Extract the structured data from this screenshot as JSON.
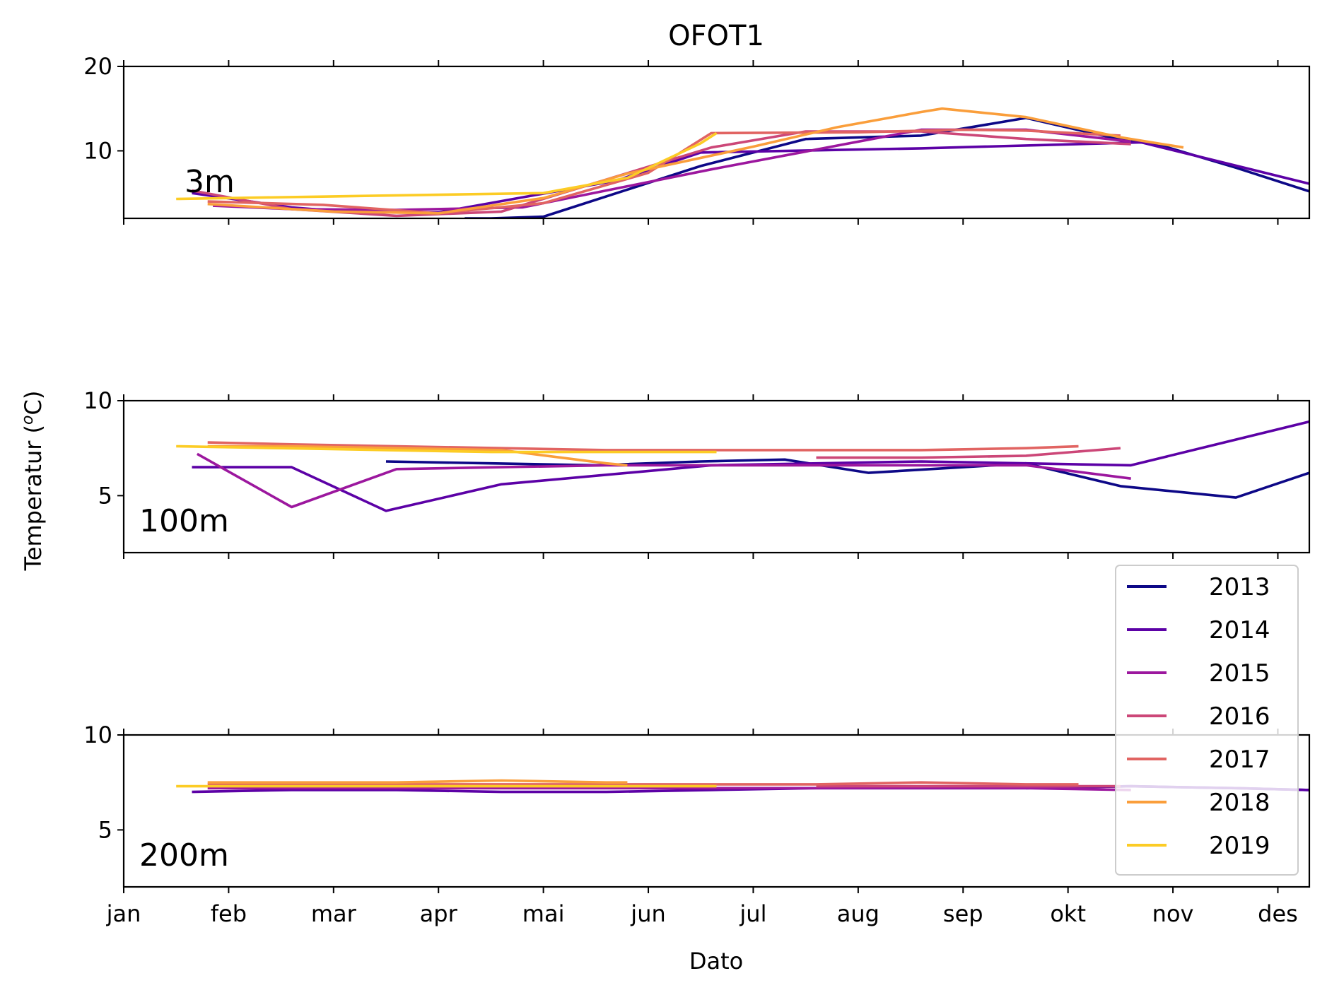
{
  "chart_data": {
    "type": "line",
    "title": "OFOT1",
    "xlabel": "Dato",
    "ylabel": "Temperatur (oC)",
    "ylabel_parts": {
      "before": "Temperatur (",
      "sup": "o",
      "after": "C)"
    },
    "x_tick_labels": [
      "jan",
      "feb",
      "mar",
      "apr",
      "mai",
      "jun",
      "jul",
      "aug",
      "sep",
      "okt",
      "nov",
      "des"
    ],
    "x_unit": "month (jan = 0)",
    "xlim": [
      0,
      11.3
    ],
    "legend": {
      "placement": "right, overlapping bottom panels"
    },
    "colors": {
      "2013": "#0d0887",
      "2014": "#5c01a6",
      "2015": "#9c179e",
      "2016": "#cc4778",
      "2017": "#e16462",
      "2018": "#fa9e3b",
      "2019": "#fccc25"
    },
    "panels": [
      {
        "label": "3m",
        "ylim": [
          2,
          20
        ],
        "yticks": [
          10,
          20
        ],
        "series": [
          {
            "name": "2013",
            "x": [
              3.25,
              3.5,
              4.0,
              5.5,
              6.5,
              7.6,
              8.6,
              9.4,
              9.9,
              10.6,
              11.3
            ],
            "y": [
              2.0,
              2.0,
              2.2,
              8.2,
              11.4,
              11.8,
              13.9,
              11.6,
              10.6,
              8.0,
              5.2
            ]
          },
          {
            "name": "2014",
            "x": [
              0.65,
              1.6,
              2.2,
              3.0,
              4.7,
              5.5,
              7.6,
              9.7,
              11.3
            ],
            "y": [
              5.0,
              3.3,
              2.7,
              2.7,
              6.5,
              9.8,
              10.3,
              11.0,
              6.1
            ]
          },
          {
            "name": "2015",
            "x": [
              0.85,
              1.6,
              2.6,
              3.8,
              5.6,
              7.6,
              8.6,
              9.6
            ],
            "y": [
              3.5,
              3.1,
              3.0,
              3.3,
              7.8,
              12.5,
              12.5,
              11.1
            ]
          },
          {
            "name": "2016",
            "x": [
              0.65,
              1.6,
              2.6,
              3.6,
              4.6,
              5.6,
              6.5,
              7.6,
              8.6,
              9.6
            ],
            "y": [
              5.3,
              3.1,
              2.3,
              2.8,
              6.6,
              10.4,
              12.3,
              12.3,
              11.4,
              10.8
            ]
          },
          {
            "name": "2017",
            "x": [
              0.8,
              1.9,
              3.0,
              4.0,
              5.0,
              5.6,
              7.0,
              8.0,
              8.6,
              9.5
            ],
            "y": [
              4.0,
              3.6,
              2.6,
              3.8,
              7.4,
              12.1,
              12.2,
              12.5,
              12.4,
              11.8
            ]
          },
          {
            "name": "2018",
            "x": [
              0.8,
              2.0,
              3.0,
              4.0,
              4.8,
              6.0,
              6.8,
              7.6,
              7.8,
              8.6,
              9.5,
              10.1
            ],
            "y": [
              3.7,
              2.8,
              2.6,
              4.4,
              7.3,
              10.5,
              12.8,
              14.6,
              15.0,
              14.0,
              11.6,
              10.4
            ]
          },
          {
            "name": "2019",
            "x": [
              0.5,
              1.0,
              2.0,
              3.0,
              4.0,
              4.8,
              5.5,
              5.65
            ],
            "y": [
              4.3,
              4.4,
              4.6,
              4.8,
              5.0,
              6.8,
              10.9,
              12.1
            ]
          }
        ]
      },
      {
        "label": "100m",
        "ylim": [
          2,
          10
        ],
        "yticks": [
          5,
          10
        ],
        "series": [
          {
            "name": "2013",
            "x": [
              2.5,
              3.5,
              4.5,
              5.5,
              6.3,
              7.1,
              8.6,
              9.5,
              10.6,
              11.3
            ],
            "y": [
              6.8,
              6.7,
              6.6,
              6.8,
              6.9,
              6.2,
              6.7,
              5.5,
              4.9,
              6.2
            ]
          },
          {
            "name": "2014",
            "x": [
              0.65,
              1.6,
              2.5,
              3.6,
              5.6,
              7.6,
              9.6,
              11.3
            ],
            "y": [
              6.5,
              6.5,
              4.2,
              5.6,
              6.6,
              6.8,
              6.6,
              8.9
            ]
          },
          {
            "name": "2015",
            "x": [
              0.7,
              1.6,
              2.6,
              3.6,
              4.6,
              5.6,
              6.6,
              7.6,
              8.6,
              9.6
            ],
            "y": [
              7.2,
              4.4,
              6.4,
              6.5,
              6.6,
              6.6,
              6.6,
              6.6,
              6.6,
              5.9
            ]
          },
          {
            "name": "2016",
            "x": [
              6.6,
              7.6,
              8.6,
              9.5
            ],
            "y": [
              7.0,
              7.0,
              7.1,
              7.5
            ]
          },
          {
            "name": "2017",
            "x": [
              0.8,
              1.6,
              2.6,
              3.6,
              4.6,
              5.6,
              6.6,
              7.6,
              8.6,
              9.1
            ],
            "y": [
              7.8,
              7.7,
              7.6,
              7.5,
              7.4,
              7.4,
              7.4,
              7.4,
              7.5,
              7.6
            ]
          },
          {
            "name": "2018",
            "x": [
              0.8,
              1.6,
              2.6,
              3.6,
              4.6,
              4.8
            ],
            "y": [
              7.6,
              7.6,
              7.5,
              7.4,
              6.7,
              6.6
            ]
          },
          {
            "name": "2019",
            "x": [
              0.5,
              1.5,
              2.5,
              3.5,
              4.5,
              5.65
            ],
            "y": [
              7.6,
              7.5,
              7.4,
              7.3,
              7.3,
              7.3
            ]
          }
        ]
      },
      {
        "label": "200m",
        "ylim": [
          2,
          10
        ],
        "yticks": [
          5,
          10
        ],
        "series": [
          {
            "name": "2013",
            "x": [
              8.6,
              9.6,
              10.6,
              11.3
            ],
            "y": [
              7.2,
              7.3,
              7.2,
              7.1
            ]
          },
          {
            "name": "2014",
            "x": [
              0.65,
              1.6,
              2.6,
              3.6,
              4.6,
              5.6,
              6.6,
              7.6,
              8.6,
              9.6,
              10.6,
              11.3
            ],
            "y": [
              7.0,
              7.1,
              7.1,
              7.0,
              7.0,
              7.1,
              7.2,
              7.2,
              7.2,
              7.3,
              7.2,
              7.1
            ]
          },
          {
            "name": "2015",
            "x": [
              0.8,
              1.6,
              2.6,
              3.6,
              4.6,
              5.6,
              6.6,
              7.6,
              8.6,
              9.6
            ],
            "y": [
              7.2,
              7.2,
              7.2,
              7.2,
              7.2,
              7.2,
              7.2,
              7.2,
              7.2,
              7.1
            ]
          },
          {
            "name": "2016",
            "x": [
              6.6,
              7.6,
              8.6,
              9.5
            ],
            "y": [
              7.3,
              7.3,
              7.3,
              7.3
            ]
          },
          {
            "name": "2017",
            "x": [
              0.8,
              1.6,
              2.6,
              3.6,
              4.6,
              5.6,
              6.6,
              7.6,
              8.6,
              9.1
            ],
            "y": [
              7.4,
              7.4,
              7.4,
              7.4,
              7.4,
              7.4,
              7.4,
              7.5,
              7.4,
              7.4
            ]
          },
          {
            "name": "2018",
            "x": [
              0.8,
              1.6,
              2.6,
              3.6,
              4.6,
              4.8
            ],
            "y": [
              7.5,
              7.5,
              7.5,
              7.6,
              7.5,
              7.5
            ]
          },
          {
            "name": "2019",
            "x": [
              0.5,
              1.5,
              2.5,
              3.5,
              4.5,
              5.65
            ],
            "y": [
              7.3,
              7.3,
              7.3,
              7.3,
              7.3,
              7.3
            ]
          }
        ]
      }
    ]
  }
}
